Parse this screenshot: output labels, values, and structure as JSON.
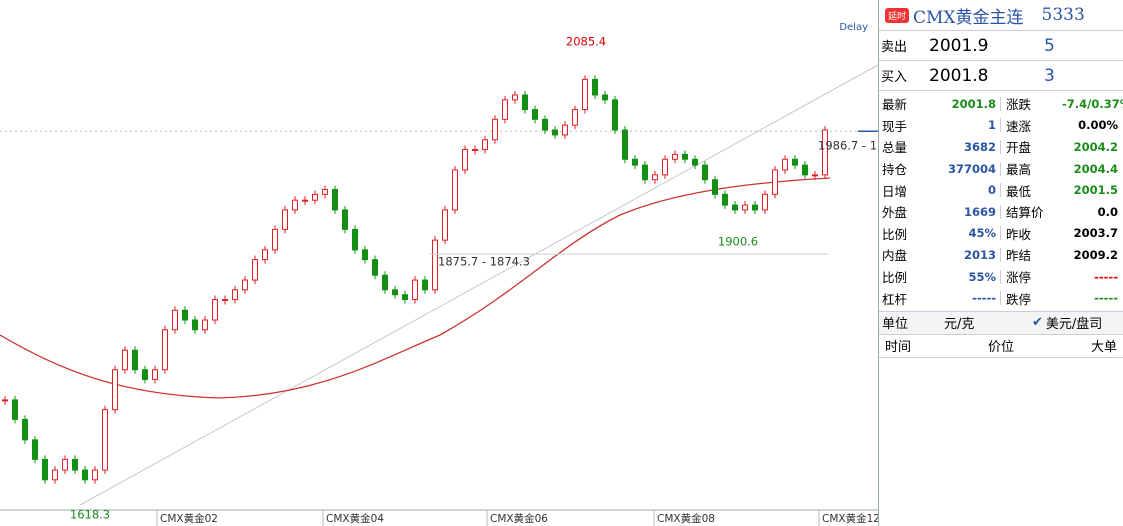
{
  "chart_data": {
    "type": "candlestick",
    "delay_label": "Delay",
    "ylim": [
      1613,
      2118
    ],
    "closes": [
      1726,
      1706,
      1685,
      1665,
      1644,
      1654,
      1665,
      1654,
      1644,
      1654,
      1716,
      1757,
      1777,
      1757,
      1747,
      1757,
      1798,
      1818,
      1808,
      1798,
      1808,
      1829,
      1829,
      1839,
      1849,
      1870,
      1880,
      1901,
      1921,
      1931,
      1931,
      1937,
      1942,
      1921,
      1901,
      1880,
      1870,
      1854,
      1839,
      1834,
      1829,
      1849,
      1839,
      1890,
      1921,
      1962,
      1983,
      1983,
      1993,
      2014,
      2034,
      2039,
      2024,
      2014,
      2003,
      1998,
      2008,
      2024,
      2055,
      2039,
      2034,
      2003,
      1973,
      1967,
      1952,
      1957,
      1973,
      1978,
      1973,
      1967,
      1952,
      1937,
      1926,
      1921,
      1926,
      1921,
      1937,
      1962,
      1973,
      1967,
      1957,
      1957,
      2003
    ],
    "annotations": [
      {
        "text": "2085.4",
        "value": 2085.4
      },
      {
        "text": "1900.6",
        "value": 1900.6
      },
      {
        "text": "1618.3",
        "value": 1618.3
      },
      {
        "text": "1875.7 - 1874.3",
        "value": 1875.7
      },
      {
        "text": "1986.7 - 1",
        "value": 1986.7
      }
    ],
    "last_price": 2001.8,
    "x_labels": [
      "CMX黄金02",
      "CMX黄金04",
      "CMX黄金06",
      "CMX黄金08",
      "CMX黄金12"
    ]
  },
  "panel": {
    "badge": "延时",
    "title": "CMX黄金主连",
    "code": "5333",
    "book": [
      {
        "label": "卖出",
        "price": "2001.9",
        "vol": "5"
      },
      {
        "label": "买入",
        "price": "2001.8",
        "vol": "3"
      }
    ],
    "stats": [
      [
        [
          "最新",
          "2001.8"
        ],
        [
          "涨跌",
          "-7.4/0.37%"
        ]
      ],
      [
        [
          "现手",
          "1"
        ],
        [
          "速涨",
          "0.00%"
        ]
      ],
      [
        [
          "总量",
          "3682"
        ],
        [
          "开盘",
          "2004.2"
        ]
      ],
      [
        [
          "持仓",
          "377004"
        ],
        [
          "最高",
          "2004.4"
        ]
      ],
      [
        [
          "日增",
          "0"
        ],
        [
          "最低",
          "2001.5"
        ]
      ],
      [
        [
          "外盘",
          "1669"
        ],
        [
          "结算价",
          "0.0"
        ]
      ],
      [
        [
          "比例",
          "45%"
        ],
        [
          "昨收",
          "2003.7"
        ]
      ],
      [
        [
          "内盘",
          "2013"
        ],
        [
          "昨结",
          "2009.2"
        ]
      ],
      [
        [
          "比例",
          "55%"
        ],
        [
          "涨停",
          "-----"
        ]
      ],
      [
        [
          "杠杆",
          "-----"
        ],
        [
          "跌停",
          "-----"
        ]
      ]
    ],
    "unit": {
      "label": "单位",
      "a": "元/克",
      "b": "美元/盘司"
    },
    "columns": [
      "时间",
      "价位",
      "大单"
    ]
  }
}
